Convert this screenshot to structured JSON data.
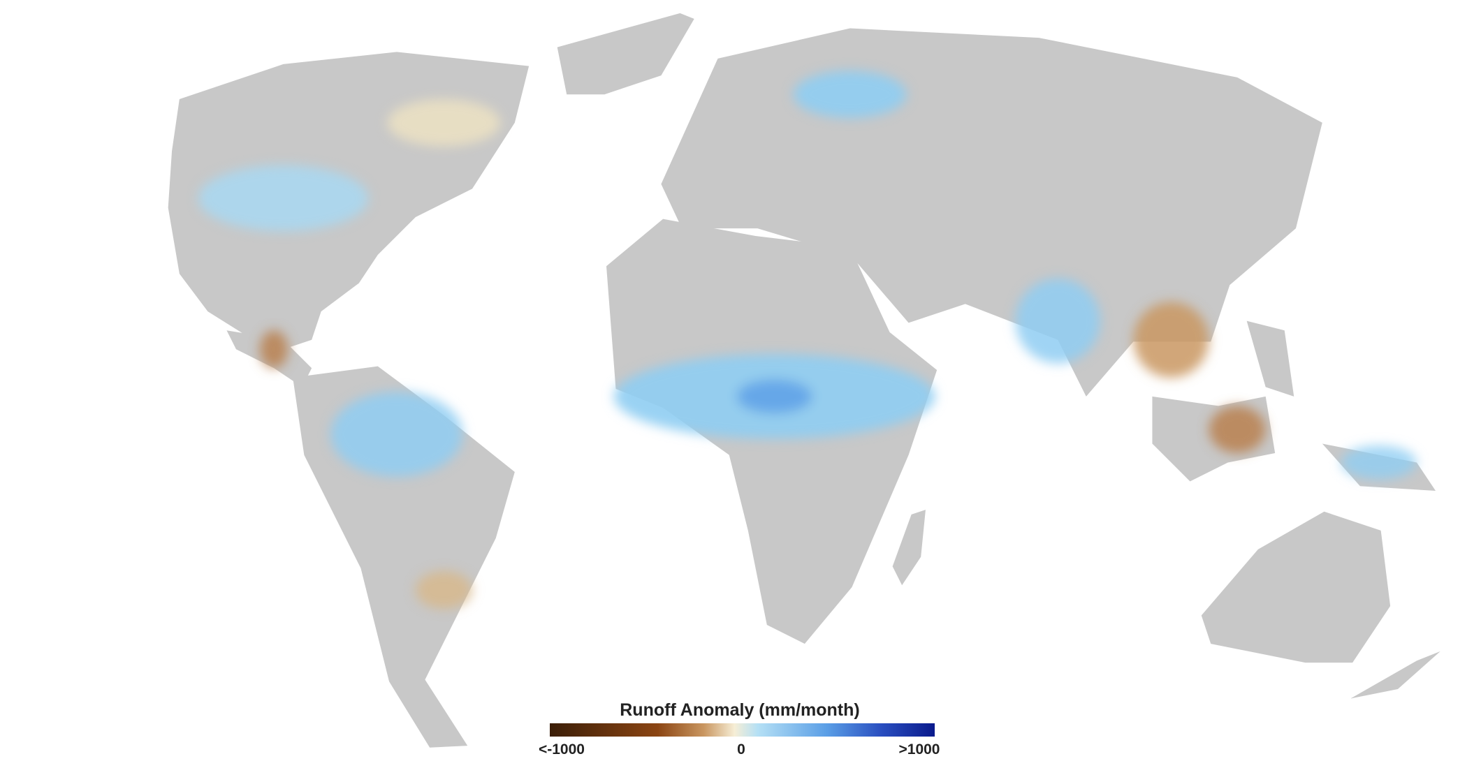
{
  "legend": {
    "title": "Runoff Anomaly (mm/month)",
    "labels": [
      "<-1000",
      "0",
      ">1000"
    ]
  }
}
